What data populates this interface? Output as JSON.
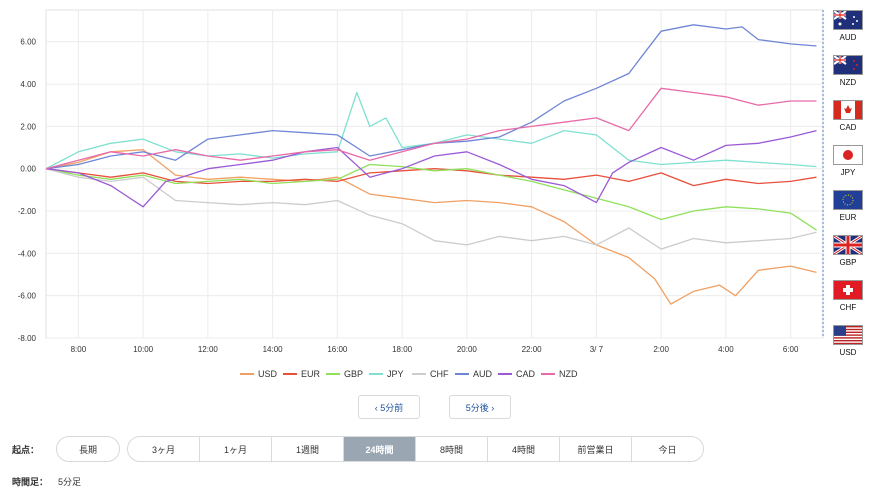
{
  "chart_data": {
    "type": "line",
    "y_ticks": [
      "6.00",
      "4.00",
      "2.00",
      "0.00",
      "-2.00",
      "-4.00",
      "-6.00",
      "-8.00"
    ],
    "x_ticks": [
      "8:00",
      "10:00",
      "12:00",
      "14:00",
      "16:00",
      "18:00",
      "20:00",
      "22:00",
      "3/ 7",
      "2:00",
      "4:00",
      "6:00"
    ],
    "ylim": [
      -8,
      7.5
    ],
    "xlim": [
      7.0,
      31.0
    ],
    "grid": true,
    "series": [
      {
        "name": "USD",
        "color": "#f0a063",
        "points": [
          [
            7.0,
            0
          ],
          [
            8,
            0.3
          ],
          [
            9,
            0.8
          ],
          [
            10,
            0.9
          ],
          [
            11,
            -0.3
          ],
          [
            12,
            -0.5
          ],
          [
            13,
            -0.4
          ],
          [
            14,
            -0.5
          ],
          [
            15,
            -0.6
          ],
          [
            16,
            -0.4
          ],
          [
            17,
            -1.2
          ],
          [
            18,
            -1.4
          ],
          [
            19,
            -1.6
          ],
          [
            20,
            -1.5
          ],
          [
            21,
            -1.6
          ],
          [
            22,
            -1.8
          ],
          [
            23,
            -2.5
          ],
          [
            24,
            -3.6
          ],
          [
            25,
            -4.2
          ],
          [
            25.8,
            -5.2
          ],
          [
            26.3,
            -6.4
          ],
          [
            27,
            -5.8
          ],
          [
            27.8,
            -5.5
          ],
          [
            28.3,
            -6.0
          ],
          [
            29,
            -4.8
          ],
          [
            30,
            -4.6
          ],
          [
            30.8,
            -4.9
          ]
        ]
      },
      {
        "name": "EUR",
        "color": "#e8503c",
        "points": [
          [
            7.0,
            0
          ],
          [
            8,
            -0.2
          ],
          [
            9,
            -0.4
          ],
          [
            10,
            -0.2
          ],
          [
            11,
            -0.6
          ],
          [
            12,
            -0.7
          ],
          [
            13,
            -0.6
          ],
          [
            14,
            -0.6
          ],
          [
            15,
            -0.5
          ],
          [
            16,
            -0.6
          ],
          [
            17,
            -0.2
          ],
          [
            18,
            -0.1
          ],
          [
            19,
            0
          ],
          [
            20,
            -0.1
          ],
          [
            21,
            -0.3
          ],
          [
            22,
            -0.4
          ],
          [
            23,
            -0.5
          ],
          [
            24,
            -0.3
          ],
          [
            25,
            -0.6
          ],
          [
            26,
            -0.2
          ],
          [
            27,
            -0.8
          ],
          [
            28,
            -0.5
          ],
          [
            29,
            -0.7
          ],
          [
            30,
            -0.6
          ],
          [
            30.8,
            -0.4
          ]
        ]
      },
      {
        "name": "GBP",
        "color": "#8fe05a",
        "points": [
          [
            7.0,
            0
          ],
          [
            8,
            -0.3
          ],
          [
            9,
            -0.5
          ],
          [
            10,
            -0.3
          ],
          [
            11,
            -0.7
          ],
          [
            12,
            -0.6
          ],
          [
            13,
            -0.5
          ],
          [
            14,
            -0.7
          ],
          [
            15,
            -0.6
          ],
          [
            16,
            -0.5
          ],
          [
            17,
            0.2
          ],
          [
            18,
            0.1
          ],
          [
            19,
            -0.1
          ],
          [
            20,
            0
          ],
          [
            21,
            -0.3
          ],
          [
            22,
            -0.6
          ],
          [
            23,
            -1.0
          ],
          [
            24,
            -1.4
          ],
          [
            25,
            -1.8
          ],
          [
            26,
            -2.4
          ],
          [
            27,
            -2.0
          ],
          [
            28,
            -1.8
          ],
          [
            29,
            -1.9
          ],
          [
            30,
            -2.1
          ],
          [
            30.8,
            -2.9
          ]
        ]
      },
      {
        "name": "JPY",
        "color": "#7fe0d0",
        "points": [
          [
            7.0,
            0
          ],
          [
            8,
            0.8
          ],
          [
            9,
            1.2
          ],
          [
            10,
            1.4
          ],
          [
            11,
            0.8
          ],
          [
            12,
            0.6
          ],
          [
            13,
            0.7
          ],
          [
            14,
            0.5
          ],
          [
            15,
            0.7
          ],
          [
            16,
            0.8
          ],
          [
            16.6,
            3.6
          ],
          [
            17,
            2.0
          ],
          [
            17.5,
            2.4
          ],
          [
            18,
            1.0
          ],
          [
            19,
            1.2
          ],
          [
            20,
            1.6
          ],
          [
            21,
            1.4
          ],
          [
            22,
            1.2
          ],
          [
            23,
            1.8
          ],
          [
            24,
            1.6
          ],
          [
            25,
            0.4
          ],
          [
            26,
            0.2
          ],
          [
            27,
            0.3
          ],
          [
            28,
            0.4
          ],
          [
            29,
            0.3
          ],
          [
            30,
            0.2
          ],
          [
            30.8,
            0.1
          ]
        ]
      },
      {
        "name": "CHF",
        "color": "#cccccc",
        "points": [
          [
            7.0,
            0
          ],
          [
            8,
            -0.4
          ],
          [
            9,
            -0.6
          ],
          [
            10,
            -0.4
          ],
          [
            11,
            -1.5
          ],
          [
            12,
            -1.6
          ],
          [
            13,
            -1.7
          ],
          [
            14,
            -1.6
          ],
          [
            15,
            -1.7
          ],
          [
            16,
            -1.5
          ],
          [
            17,
            -2.2
          ],
          [
            18,
            -2.6
          ],
          [
            19,
            -3.4
          ],
          [
            20,
            -3.6
          ],
          [
            21,
            -3.2
          ],
          [
            22,
            -3.4
          ],
          [
            23,
            -3.2
          ],
          [
            24,
            -3.6
          ],
          [
            25,
            -2.8
          ],
          [
            26,
            -3.8
          ],
          [
            27,
            -3.3
          ],
          [
            28,
            -3.5
          ],
          [
            29,
            -3.4
          ],
          [
            30,
            -3.3
          ],
          [
            30.8,
            -3.0
          ]
        ]
      },
      {
        "name": "AUD",
        "color": "#6f86d6",
        "points": [
          [
            7.0,
            0
          ],
          [
            8,
            0.2
          ],
          [
            9,
            0.6
          ],
          [
            10,
            0.8
          ],
          [
            11,
            0.4
          ],
          [
            12,
            1.4
          ],
          [
            13,
            1.6
          ],
          [
            14,
            1.8
          ],
          [
            15,
            1.7
          ],
          [
            16,
            1.6
          ],
          [
            17,
            0.6
          ],
          [
            18,
            0.9
          ],
          [
            19,
            1.2
          ],
          [
            20,
            1.3
          ],
          [
            21,
            1.5
          ],
          [
            22,
            2.2
          ],
          [
            23,
            3.2
          ],
          [
            24,
            3.8
          ],
          [
            25,
            4.5
          ],
          [
            25.5,
            5.5
          ],
          [
            26,
            6.5
          ],
          [
            27,
            6.8
          ],
          [
            28,
            6.6
          ],
          [
            28.5,
            6.7
          ],
          [
            29,
            6.1
          ],
          [
            30,
            5.9
          ],
          [
            30.8,
            5.8
          ]
        ]
      },
      {
        "name": "CAD",
        "color": "#9a5ad6",
        "points": [
          [
            7.0,
            0
          ],
          [
            8,
            -0.2
          ],
          [
            9,
            -0.8
          ],
          [
            10,
            -1.8
          ],
          [
            10.7,
            -0.6
          ],
          [
            11,
            -0.5
          ],
          [
            12,
            0
          ],
          [
            13,
            0.2
          ],
          [
            14,
            0.4
          ],
          [
            15,
            0.8
          ],
          [
            16,
            1.0
          ],
          [
            17,
            -0.4
          ],
          [
            18,
            0
          ],
          [
            19,
            0.6
          ],
          [
            20,
            0.8
          ],
          [
            21,
            0.2
          ],
          [
            22,
            -0.5
          ],
          [
            23,
            -0.8
          ],
          [
            24,
            -1.6
          ],
          [
            24.5,
            -0.2
          ],
          [
            25,
            0.3
          ],
          [
            26,
            1.0
          ],
          [
            27,
            0.4
          ],
          [
            28,
            1.1
          ],
          [
            29,
            1.2
          ],
          [
            30,
            1.5
          ],
          [
            30.8,
            1.8
          ]
        ]
      },
      {
        "name": "NZD",
        "color": "#e86aa8",
        "points": [
          [
            7.0,
            0
          ],
          [
            8,
            0.4
          ],
          [
            9,
            0.8
          ],
          [
            10,
            0.6
          ],
          [
            11,
            0.9
          ],
          [
            12,
            0.6
          ],
          [
            13,
            0.4
          ],
          [
            14,
            0.6
          ],
          [
            15,
            0.8
          ],
          [
            16,
            0.9
          ],
          [
            17,
            0.4
          ],
          [
            18,
            0.8
          ],
          [
            19,
            1.2
          ],
          [
            20,
            1.4
          ],
          [
            21,
            1.8
          ],
          [
            22,
            2.0
          ],
          [
            23,
            2.2
          ],
          [
            24,
            2.4
          ],
          [
            25,
            1.8
          ],
          [
            26,
            3.8
          ],
          [
            27,
            3.6
          ],
          [
            28,
            3.4
          ],
          [
            29,
            3.0
          ],
          [
            30,
            3.2
          ],
          [
            30.8,
            3.2
          ]
        ]
      }
    ]
  },
  "flags": [
    {
      "code": "AUD",
      "kind": "aus"
    },
    {
      "code": "NZD",
      "kind": "nzd"
    },
    {
      "code": "CAD",
      "kind": "cad"
    },
    {
      "code": "JPY",
      "kind": "jpy"
    },
    {
      "code": "EUR",
      "kind": "eur"
    },
    {
      "code": "GBP",
      "kind": "gbp"
    },
    {
      "code": "CHF",
      "kind": "chf"
    },
    {
      "code": "USD",
      "kind": "usd"
    }
  ],
  "nav": {
    "prev": "‹ 5分前",
    "next": "5分後 ›"
  },
  "start": {
    "label": "起点：",
    "long_label": "長期",
    "options": [
      "3ヶ月",
      "1ヶ月",
      "1週間",
      "24時間",
      "8時間",
      "4時間",
      "前営業日",
      "今日"
    ],
    "active": "24時間"
  },
  "timeframe": {
    "label": "時間足：",
    "value": "5分足"
  }
}
